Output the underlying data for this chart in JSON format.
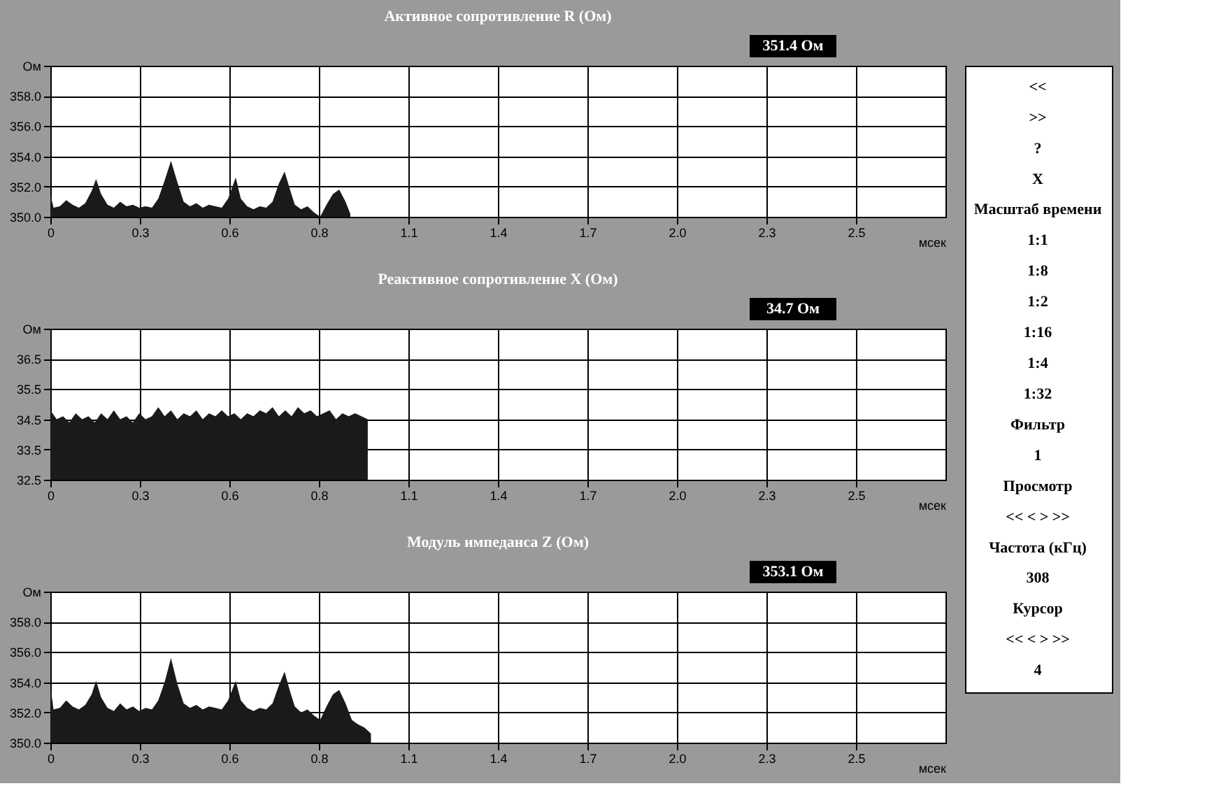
{
  "chart_data": [
    {
      "type": "area",
      "title": "Активное сопротивление R (Ом)",
      "annotations": [
        "351.4 Ом"
      ],
      "xlabel": "мсек",
      "color": "#1a1a1a",
      "grid": true,
      "x": [
        0,
        0.01,
        0.03,
        0.05,
        0.07,
        0.09,
        0.11,
        0.13,
        0.144,
        0.16,
        0.18,
        0.2,
        0.22,
        0.24,
        0.26,
        0.28,
        0.3,
        0.32,
        0.34,
        0.36,
        0.38,
        0.4,
        0.42,
        0.44,
        0.46,
        0.48,
        0.5,
        0.52,
        0.54,
        0.56,
        0.584,
        0.6,
        0.62,
        0.64,
        0.66,
        0.68,
        0.7,
        0.72,
        0.738,
        0.755,
        0.77,
        0.79,
        0.81,
        0.83,
        0.85,
        0.87,
        0.89,
        0.91,
        0.93,
        0.945
      ],
      "values": [
        351.5,
        350.6,
        350.7,
        351.1,
        350.8,
        350.6,
        350.9,
        351.7,
        352.5,
        351.5,
        350.8,
        350.6,
        351.0,
        350.7,
        350.8,
        350.6,
        350.7,
        350.6,
        351.2,
        352.4,
        353.7,
        352.3,
        351.0,
        350.7,
        350.9,
        350.6,
        350.8,
        350.7,
        350.6,
        351.2,
        352.6,
        351.2,
        350.7,
        350.5,
        350.7,
        350.6,
        351.0,
        352.2,
        353.0,
        351.8,
        350.8,
        350.5,
        350.7,
        350.3,
        350.0,
        350.8,
        351.5,
        351.8,
        351.0,
        350.2
      ],
      "xlim": [
        0,
        2.82
      ],
      "xticks": [
        {
          "value": 0,
          "label": "0"
        },
        {
          "value": 0.282,
          "label": "0.3"
        },
        {
          "value": 0.564,
          "label": "0.6"
        },
        {
          "value": 0.846,
          "label": "0.8"
        },
        {
          "value": 1.128,
          "label": "1.1"
        },
        {
          "value": 1.41,
          "label": "1.4"
        },
        {
          "value": 1.692,
          "label": "1.7"
        },
        {
          "value": 1.974,
          "label": "2.0"
        },
        {
          "value": 2.256,
          "label": "2.3"
        },
        {
          "value": 2.538,
          "label": "2.5"
        }
      ],
      "ylim": [
        350,
        360
      ],
      "yticks": [
        {
          "value": 350,
          "label": "350.0"
        },
        {
          "value": 352,
          "label": "352.0"
        },
        {
          "value": 354,
          "label": "354.0"
        },
        {
          "value": 356,
          "label": "356.0"
        },
        {
          "value": 358,
          "label": "358.0"
        },
        {
          "value": 360,
          "label": "Ом"
        }
      ]
    },
    {
      "type": "area",
      "title": "Реактивное сопротивление X (Ом)",
      "annotations": [
        "34.7 Ом"
      ],
      "xlabel": "мсек",
      "color": "#1a1a1a",
      "grid": true,
      "x": [
        0,
        0.02,
        0.04,
        0.06,
        0.08,
        0.1,
        0.12,
        0.14,
        0.16,
        0.18,
        0.2,
        0.22,
        0.24,
        0.26,
        0.28,
        0.3,
        0.32,
        0.34,
        0.36,
        0.38,
        0.4,
        0.42,
        0.44,
        0.46,
        0.48,
        0.5,
        0.52,
        0.54,
        0.56,
        0.58,
        0.6,
        0.62,
        0.64,
        0.66,
        0.68,
        0.7,
        0.72,
        0.74,
        0.76,
        0.78,
        0.8,
        0.82,
        0.84,
        0.86,
        0.88,
        0.9,
        0.92,
        0.94,
        0.96,
        0.98,
        1.0
      ],
      "values": [
        34.8,
        34.5,
        34.6,
        34.4,
        34.7,
        34.5,
        34.6,
        34.4,
        34.7,
        34.5,
        34.8,
        34.5,
        34.6,
        34.4,
        34.7,
        34.5,
        34.6,
        34.9,
        34.6,
        34.8,
        34.5,
        34.7,
        34.6,
        34.8,
        34.5,
        34.7,
        34.6,
        34.8,
        34.6,
        34.7,
        34.5,
        34.7,
        34.6,
        34.8,
        34.7,
        34.9,
        34.6,
        34.8,
        34.6,
        34.9,
        34.7,
        34.8,
        34.6,
        34.7,
        34.8,
        34.5,
        34.7,
        34.6,
        34.7,
        34.6,
        34.5
      ],
      "xlim": [
        0,
        2.82
      ],
      "xticks": [
        {
          "value": 0,
          "label": "0"
        },
        {
          "value": 0.282,
          "label": "0.3"
        },
        {
          "value": 0.564,
          "label": "0.6"
        },
        {
          "value": 0.846,
          "label": "0.8"
        },
        {
          "value": 1.128,
          "label": "1.1"
        },
        {
          "value": 1.41,
          "label": "1.4"
        },
        {
          "value": 1.692,
          "label": "1.7"
        },
        {
          "value": 1.974,
          "label": "2.0"
        },
        {
          "value": 2.256,
          "label": "2.3"
        },
        {
          "value": 2.538,
          "label": "2.5"
        }
      ],
      "ylim": [
        32.5,
        37.5
      ],
      "yticks": [
        32.5,
        33.5,
        34.5,
        35.5,
        36.5,
        {
          "value": 37.5,
          "label": "Ом"
        }
      ]
    },
    {
      "type": "area",
      "title": "Модуль импеданса Z (Ом)",
      "annotations": [
        "353.1 Ом"
      ],
      "xlabel": "мсек",
      "color": "#1a1a1a",
      "grid": true,
      "x": [
        0,
        0.01,
        0.03,
        0.05,
        0.07,
        0.09,
        0.11,
        0.13,
        0.144,
        0.16,
        0.18,
        0.2,
        0.22,
        0.24,
        0.26,
        0.28,
        0.3,
        0.32,
        0.34,
        0.36,
        0.38,
        0.4,
        0.42,
        0.44,
        0.46,
        0.48,
        0.5,
        0.52,
        0.54,
        0.56,
        0.584,
        0.6,
        0.62,
        0.64,
        0.66,
        0.68,
        0.7,
        0.72,
        0.738,
        0.755,
        0.77,
        0.79,
        0.81,
        0.83,
        0.85,
        0.87,
        0.89,
        0.91,
        0.93,
        0.95,
        0.97,
        0.99,
        1.01
      ],
      "values": [
        353.8,
        352.2,
        352.3,
        352.8,
        352.4,
        352.2,
        352.5,
        353.2,
        354.1,
        353.0,
        352.3,
        352.1,
        352.6,
        352.2,
        352.4,
        352.1,
        352.3,
        352.2,
        352.8,
        354.0,
        355.6,
        353.9,
        352.6,
        352.3,
        352.5,
        352.2,
        352.4,
        352.3,
        352.2,
        352.8,
        354.1,
        352.8,
        352.3,
        352.1,
        352.3,
        352.2,
        352.6,
        353.8,
        354.7,
        353.4,
        352.4,
        352.0,
        352.2,
        351.8,
        351.5,
        352.4,
        353.2,
        353.5,
        352.6,
        351.5,
        351.2,
        351.0,
        350.6
      ],
      "xlim": [
        0,
        2.82
      ],
      "xticks": [
        {
          "value": 0,
          "label": "0"
        },
        {
          "value": 0.282,
          "label": "0.3"
        },
        {
          "value": 0.564,
          "label": "0.6"
        },
        {
          "value": 0.846,
          "label": "0.8"
        },
        {
          "value": 1.128,
          "label": "1.1"
        },
        {
          "value": 1.41,
          "label": "1.4"
        },
        {
          "value": 1.692,
          "label": "1.7"
        },
        {
          "value": 1.974,
          "label": "2.0"
        },
        {
          "value": 2.256,
          "label": "2.3"
        },
        {
          "value": 2.538,
          "label": "2.5"
        }
      ],
      "ylim": [
        350,
        360
      ],
      "yticks": [
        {
          "value": 350,
          "label": "350.0"
        },
        {
          "value": 352,
          "label": "352.0"
        },
        {
          "value": 354,
          "label": "354.0"
        },
        {
          "value": 356,
          "label": "356.0"
        },
        {
          "value": 358,
          "label": "358.0"
        },
        {
          "value": 360,
          "label": "Ом"
        }
      ]
    },
    {
      "type": "other",
      "annotations": [
        "<<",
        ">>",
        "?",
        "X",
        "Масштаб времени",
        "1:1",
        "1:8",
        "1:2",
        "1:16",
        "1:4",
        "1:32",
        "Фильтр",
        "1",
        "Просмотр",
        "<<  <  >  >>",
        "Частота (кГц)",
        "308",
        "Курсор",
        "<<  <  >  >>",
        "4"
      ]
    }
  ]
}
